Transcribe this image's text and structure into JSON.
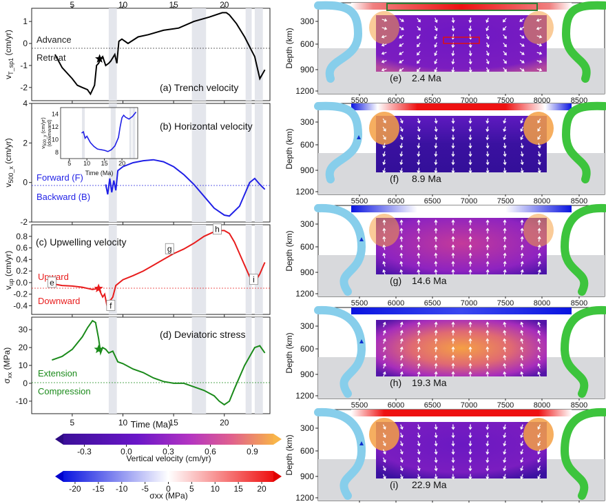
{
  "chart_data": [
    {
      "id": "a",
      "type": "line",
      "title": "(a) Trench velocity",
      "ylabel": "vT_sp1 (cm/yr)",
      "ylim": [
        -2.6,
        1.6
      ],
      "xlim": [
        1,
        24.5
      ],
      "yticks": [
        -2,
        -1,
        0,
        1
      ],
      "top_xticks": [
        5,
        10,
        15,
        20
      ],
      "annotations": [
        {
          "text": "Advance"
        },
        {
          "text": "Retreat"
        }
      ],
      "series": [
        {
          "color": "#000000",
          "x": [
            3.3,
            4,
            5,
            5.5,
            6,
            6.5,
            6.8,
            7.2,
            7.4,
            7.6,
            7.8,
            8.0,
            8.3,
            8.6,
            8.8,
            9.2,
            9.4,
            9.6,
            9.9,
            10.5,
            11.5,
            12.5,
            14,
            15.5,
            17,
            18.5,
            19.8,
            20.2,
            20.5,
            21.2,
            22,
            23,
            23.5,
            24
          ],
          "y": [
            -0.5,
            -1.1,
            -1.6,
            -1.9,
            -2.0,
            -2.1,
            -2.3,
            -1.9,
            -1.0,
            -0.9,
            -0.7,
            -0.6,
            -1.0,
            -0.9,
            -0.8,
            -0.5,
            -0.9,
            0.1,
            0.2,
            0.0,
            0.3,
            0.4,
            0.6,
            0.7,
            1.0,
            1.2,
            1.4,
            1.4,
            1.3,
            0.9,
            0.3,
            -0.6,
            -1.6,
            -1.2
          ]
        }
      ],
      "marker": {
        "x": 7.7,
        "y": -0.7
      },
      "shaded": [
        [
          8.6,
          9.4
        ],
        [
          16.8,
          18.2
        ],
        [
          22.1,
          22.7
        ],
        [
          23.0,
          23.8
        ]
      ]
    },
    {
      "id": "b",
      "type": "line",
      "title": "(b) Horizontal velocity",
      "ylabel": "v500_x (cm/yr)",
      "ylim": [
        -2,
        4
      ],
      "xlim": [
        1,
        24.5
      ],
      "yticks": [
        -2,
        0,
        2,
        4
      ],
      "annotations": [
        {
          "text": "Forward (F)"
        },
        {
          "text": "Backward (B)"
        }
      ],
      "series": [
        {
          "color": "#1f1fe6",
          "x": [
            8.3,
            8.5,
            8.7,
            8.9,
            9.1,
            9.3,
            9.5,
            10,
            11,
            12,
            13,
            14,
            15,
            16,
            17,
            18,
            19,
            20,
            20.5,
            21.5,
            22.5,
            23,
            23.5,
            24
          ],
          "y": [
            -0.1,
            -0.6,
            0.2,
            -0.5,
            0.1,
            -0.4,
            0.6,
            0.8,
            1.0,
            1.1,
            1.15,
            1.05,
            0.8,
            0.4,
            -0.1,
            -0.7,
            -1.3,
            -1.65,
            -1.7,
            -1.2,
            0.0,
            0.2,
            -0.1,
            -0.35
          ]
        }
      ],
      "shaded": [
        [
          8.6,
          9.4
        ],
        [
          16.8,
          18.2
        ],
        [
          22.1,
          22.7
        ],
        [
          23.0,
          23.8
        ]
      ],
      "inset": {
        "xlabel": "Time (Ma)",
        "ylabel": "v500_y (cm/yr) (downward)",
        "xticks": [
          5,
          10,
          15,
          20
        ],
        "yticks": [
          8,
          10,
          12,
          14
        ],
        "xlim": [
          2.5,
          24.5
        ],
        "ylim": [
          7,
          15
        ],
        "x": [
          8.5,
          9,
          9.5,
          10,
          11,
          12,
          13,
          14,
          15,
          16,
          17,
          18,
          19,
          19.5,
          20,
          20.5,
          21,
          22,
          23,
          24
        ],
        "y": [
          11,
          11.2,
          10.2,
          10.5,
          9.5,
          8.9,
          8.5,
          8.4,
          8.3,
          8.1,
          8.4,
          9.0,
          10.3,
          12.0,
          13.4,
          13.8,
          13.5,
          13.2,
          13.6,
          14.3
        ]
      }
    },
    {
      "id": "c",
      "type": "line",
      "title": "(c) Upwelling velocity",
      "ylabel": "vup (cm/yr)",
      "ylim": [
        -0.55,
        1.0
      ],
      "xlim": [
        1,
        24.5
      ],
      "yticks": [
        -0.4,
        -0.2,
        0.0,
        0.2,
        0.4,
        0.6,
        0.8
      ],
      "annotations": [
        {
          "text": "Upward"
        },
        {
          "text": "Downward"
        }
      ],
      "series": [
        {
          "color": "#e81c1c",
          "x": [
            3,
            4,
            5,
            6,
            7,
            7.6,
            8.0,
            8.2,
            8.4,
            8.6,
            8.8,
            9.0,
            9.3,
            10,
            11,
            12,
            13,
            14,
            15,
            16,
            17,
            18,
            19,
            19.5,
            20,
            20.5,
            21,
            21.5,
            22,
            22.5,
            23,
            23.5,
            24
          ],
          "y": [
            -0.02,
            -0.05,
            -0.06,
            -0.08,
            -0.12,
            -0.1,
            -0.25,
            -0.2,
            -0.38,
            -0.32,
            -0.3,
            -0.25,
            -0.05,
            0.05,
            0.12,
            0.2,
            0.3,
            0.4,
            0.5,
            0.58,
            0.68,
            0.8,
            0.88,
            0.9,
            0.9,
            0.85,
            0.7,
            0.5,
            0.3,
            0.1,
            0.0,
            0.15,
            0.35
          ]
        }
      ],
      "marker": {
        "x": 7.6,
        "y": -0.1
      },
      "labels": [
        {
          "text": "e",
          "x": 3.0,
          "y": 0.0
        },
        {
          "text": "f",
          "x": 8.8,
          "y": -0.4
        },
        {
          "text": "g",
          "x": 14.6,
          "y": 0.58
        },
        {
          "text": "h",
          "x": 19.3,
          "y": 0.92
        },
        {
          "text": "i",
          "x": 22.9,
          "y": 0.05
        }
      ],
      "shaded": [
        [
          8.6,
          9.4
        ],
        [
          16.8,
          18.2
        ],
        [
          22.1,
          22.7
        ],
        [
          23.0,
          23.8
        ]
      ]
    },
    {
      "id": "d",
      "type": "line",
      "title": "(d) Deviatoric stress",
      "ylabel": "σxx (MPa)",
      "xlabel": "Time (Ma)",
      "ylim": [
        -17,
        37
      ],
      "xlim": [
        1,
        24.5
      ],
      "yticks": [
        -10,
        0,
        10,
        20,
        30
      ],
      "xticks": [
        5,
        10,
        15,
        20
      ],
      "annotations": [
        {
          "text": "Extension"
        },
        {
          "text": "Compression"
        }
      ],
      "series": [
        {
          "color": "#1a8a1a",
          "x": [
            3,
            4,
            5,
            6,
            6.5,
            7,
            7.3,
            7.6,
            7.8,
            8.0,
            8.3,
            8.6,
            9.0,
            9.5,
            10,
            11,
            12,
            13,
            14,
            15,
            16,
            17,
            18,
            19,
            19.5,
            20,
            20.5,
            21,
            22,
            23,
            23.5,
            24
          ],
          "y": [
            13,
            15,
            19,
            26,
            31,
            35,
            34,
            25,
            17,
            20,
            19,
            17,
            18,
            12,
            11,
            8,
            6,
            3,
            1,
            0,
            0,
            -2,
            -4,
            -7,
            -10,
            -12,
            -10,
            -3,
            10,
            20,
            21,
            17
          ]
        }
      ],
      "marker": {
        "x": 7.6,
        "y": 19
      },
      "shaded": [
        [
          8.6,
          9.4
        ],
        [
          16.8,
          18.2
        ],
        [
          22.1,
          22.7
        ],
        [
          23.0,
          23.8
        ]
      ]
    }
  ],
  "colorbars": [
    {
      "label": "Vertical velocity (cm/yr)",
      "ticks": [
        "-0.3",
        "0.0",
        "0.3",
        "0.6",
        "0.9"
      ]
    },
    {
      "label": "σxx (MPa)",
      "ticks": [
        "-20",
        "-15",
        "-10",
        "-5",
        "0",
        "5",
        "10",
        "15",
        "20"
      ]
    }
  ],
  "panels": [
    {
      "letter": "(e)",
      "age": "2.4 Ma"
    },
    {
      "letter": "(f)",
      "age": "8.9 Ma"
    },
    {
      "letter": "(g)",
      "age": "14.6 Ma"
    },
    {
      "letter": "(h)",
      "age": "19.3 Ma"
    },
    {
      "letter": "(i)",
      "age": "22.9 Ma"
    }
  ],
  "map_axes": {
    "ylabel": "Depth (km)",
    "yticks": [
      "300",
      "600",
      "900",
      "1200"
    ],
    "xticks": [
      "5500",
      "6000",
      "6500",
      "7000",
      "7500",
      "8000",
      "8500"
    ]
  }
}
